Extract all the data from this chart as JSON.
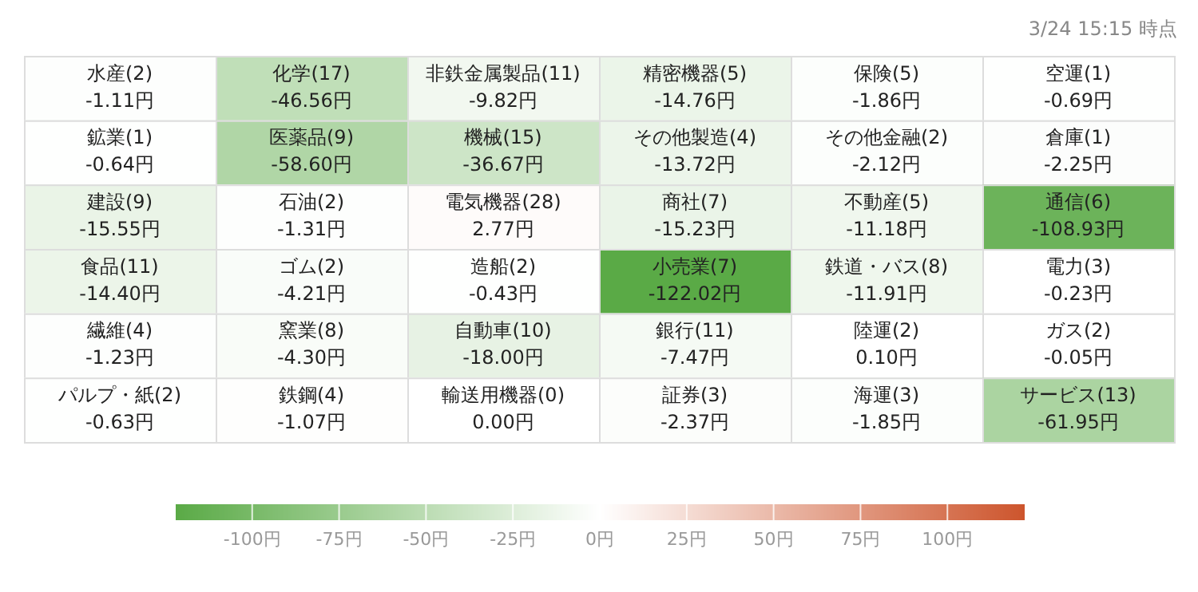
{
  "chart_data": {
    "type": "heatmap",
    "annotations": [
      "3/24 15:15 時点"
    ],
    "categories": [
      null,
      null,
      null,
      null,
      null,
      null
    ],
    "y_categories": [
      null,
      null,
      null,
      null,
      null,
      null
    ],
    "cells": [
      [
        -1.11,
        -46.56,
        -9.82,
        -14.76,
        -1.86,
        -0.69
      ],
      [
        -0.64,
        -58.6,
        -36.67,
        -13.72,
        -2.12,
        -2.25
      ],
      [
        -15.55,
        -1.31,
        2.77,
        -15.23,
        -11.18,
        -108.93
      ],
      [
        -14.4,
        -4.21,
        -0.43,
        -122.02,
        -11.91,
        -0.23
      ],
      [
        -1.23,
        -4.3,
        -18.0,
        -7.47,
        0.1,
        -0.05
      ],
      [
        -0.63,
        -1.07,
        0.0,
        -2.37,
        -1.85,
        -61.95
      ]
    ],
    "cell_labels": [
      [
        "水産(2)\n-1.11円",
        "化学(17)\n-46.56円",
        "非鉄金属製品(11)\n-9.82円",
        "精密機器(5)\n-14.76円",
        "保険(5)\n-1.86円",
        "空運(1)\n-0.69円"
      ],
      [
        "鉱業(1)\n-0.64円",
        "医薬品(9)\n-58.60円",
        "機械(15)\n-36.67円",
        "その他製造(4)\n-13.72円",
        "その他金融(2)\n-2.12円",
        "倉庫(1)\n-2.25円"
      ],
      [
        "建設(9)\n-15.55円",
        "石油(2)\n-1.31円",
        "電気機器(28)\n2.77円",
        "商社(7)\n-15.23円",
        "不動産(5)\n-11.18円",
        "通信(6)\n-108.93円"
      ],
      [
        "食品(11)\n-14.40円",
        "ゴム(2)\n-4.21円",
        "造船(2)\n-0.43円",
        "小売業(7)\n-122.02円",
        "鉄道・バス(8)\n-11.91円",
        "電力(3)\n-0.23円"
      ],
      [
        "繊維(4)\n-1.23円",
        "窯業(8)\n-4.30円",
        "自動車(10)\n-18.00円",
        "銀行(11)\n-7.47円",
        "陸運(2)\n0.10円",
        "ガス(2)\n-0.05円"
      ],
      [
        "パルプ・紙(2)\n-0.63円",
        "鉄鋼(4)\n-1.07円",
        "輸送用機器(0)\n0.00円",
        "証券(3)\n-2.37円",
        "海運(3)\n-1.85円",
        "サービス(13)\n-61.95円"
      ]
    ],
    "clim": [
      -122,
      122
    ],
    "cticks": [
      {
        "value": -100,
        "label": "-100円"
      },
      {
        "value": -75,
        "label": "-75円"
      },
      {
        "value": -50,
        "label": "-50円"
      },
      {
        "value": -25,
        "label": "-25円"
      },
      {
        "value": 0,
        "label": "0円"
      },
      {
        "value": 25,
        "label": "25円"
      },
      {
        "value": 50,
        "label": "50円"
      },
      {
        "value": 75,
        "label": "75円"
      },
      {
        "value": 100,
        "label": "100円"
      }
    ]
  }
}
